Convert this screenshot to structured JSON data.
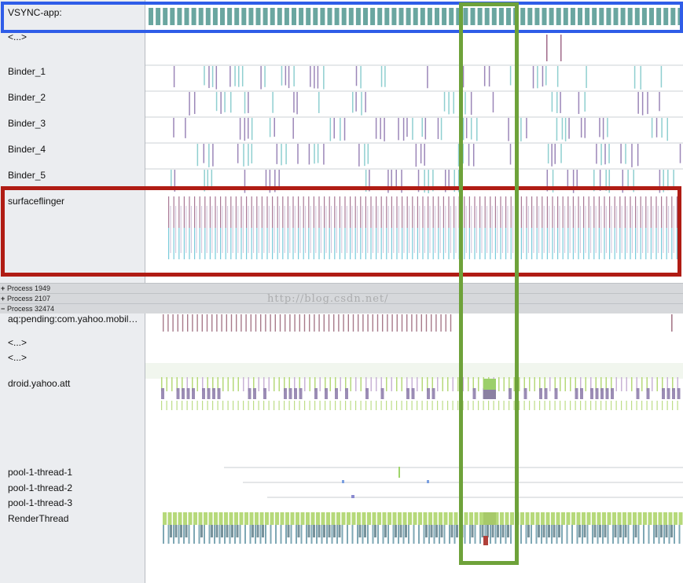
{
  "threads_top": [
    {
      "id": "vsync",
      "label": "VSYNC-app:"
    },
    {
      "id": "ellipsis1",
      "label": "<...>"
    },
    {
      "id": "binder1",
      "label": "Binder_1"
    },
    {
      "id": "binder2",
      "label": "Binder_2"
    },
    {
      "id": "binder3",
      "label": "Binder_3"
    },
    {
      "id": "binder4",
      "label": "Binder_4"
    },
    {
      "id": "binder5",
      "label": "Binder_5"
    },
    {
      "id": "sf",
      "label": "surfaceflinger"
    }
  ],
  "processes": [
    {
      "sign": "+",
      "label": "Process 1949"
    },
    {
      "sign": "+",
      "label": "Process 2107"
    },
    {
      "sign": "−",
      "label": "Process 32474"
    }
  ],
  "threads_bottom": [
    {
      "id": "aq",
      "label": "aq:pending:com.yahoo.mobil…"
    },
    {
      "id": "ellipsis2",
      "label": "<...>"
    },
    {
      "id": "ellipsis3",
      "label": "<...>"
    },
    {
      "id": "droid",
      "label": "droid.yahoo.att"
    },
    {
      "id": "pool1",
      "label": "pool-1-thread-1"
    },
    {
      "id": "pool2",
      "label": "pool-1-thread-2"
    },
    {
      "id": "pool3",
      "label": "pool-1-thread-3"
    },
    {
      "id": "render",
      "label": "RenderThread"
    }
  ],
  "watermark": "http://blog.csdn.net/",
  "colors": {
    "vsync": "#6aa6a0",
    "binder_a": "#9b86b8",
    "binder_b": "#8fcfd0",
    "sf_top": "#a06a8a",
    "sf_bottom": "#72c8d8",
    "aq": "#a77a8a",
    "green_light": "#b6d97a",
    "purple": "#8a78a8",
    "render_teal": "#7ea7b4",
    "render_red": "#b0403a",
    "highlight_blue": "#2f5de8",
    "highlight_red": "#b01c14",
    "highlight_green": "#6ea23a"
  }
}
